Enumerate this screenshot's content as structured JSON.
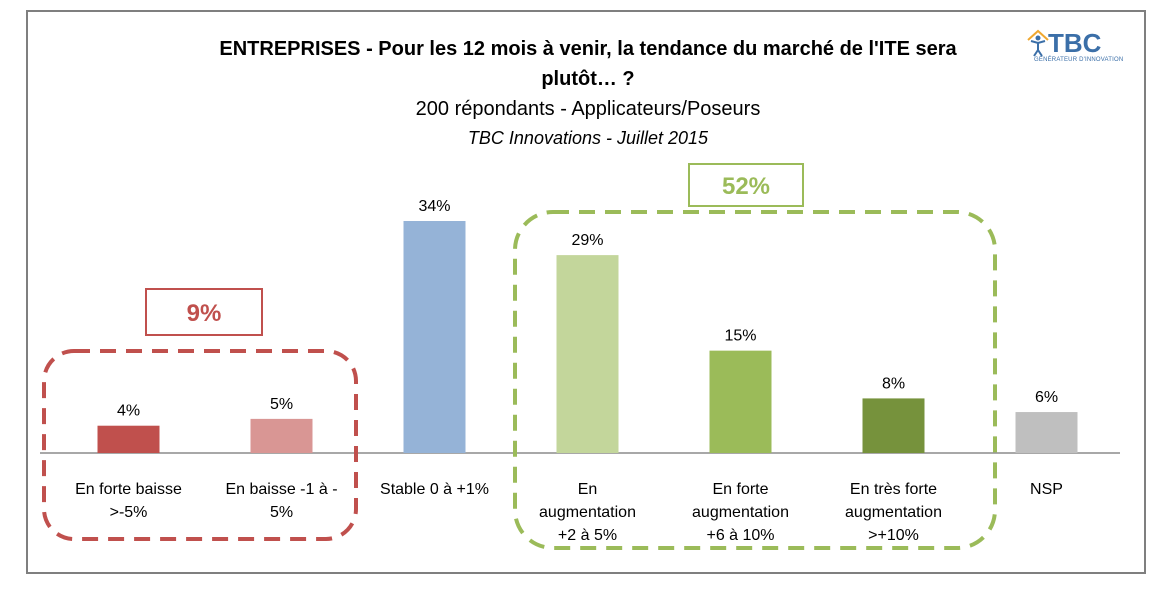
{
  "title_line1": "ENTREPRISES - Pour les 12 mois à venir, la tendance du marché de l'ITE sera",
  "title_line2": "plutôt… ?",
  "subtitle": "200 répondants - Applicateurs/Poseurs",
  "source": "TBC Innovations  - Juillet 2015",
  "logo": {
    "name": "TBC",
    "tagline": "GÉNÉRATEUR D'INNOVATION",
    "icon": "person-house-icon"
  },
  "chart_data": {
    "type": "bar",
    "categories": [
      [
        "En forte baisse",
        ">-5%"
      ],
      [
        "En baisse -1 à -",
        "5%"
      ],
      [
        "Stable 0 à +1%"
      ],
      [
        "En",
        "augmentation",
        "+2 à 5%"
      ],
      [
        "En forte",
        "augmentation",
        "+6 à 10%"
      ],
      [
        "En très forte",
        "augmentation",
        ">+10%"
      ],
      [
        "NSP"
      ]
    ],
    "values": [
      4,
      5,
      34,
      29,
      15,
      8,
      6
    ],
    "data_labels": [
      "4%",
      "5%",
      "34%",
      "29%",
      "15%",
      "8%",
      "6%"
    ],
    "colors": [
      "#c0504d",
      "#d99694",
      "#95b3d7",
      "#c3d69b",
      "#9bbb59",
      "#76923c",
      "#bfbfbf"
    ],
    "groups": [
      {
        "label": "9%",
        "color": "#c0504d"
      },
      {
        "label": "52%",
        "color": "#9bbb59"
      }
    ],
    "ylim": [
      0,
      34
    ]
  }
}
